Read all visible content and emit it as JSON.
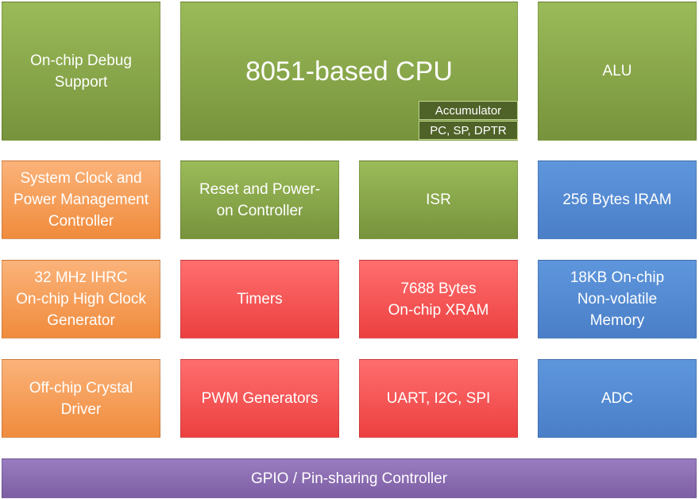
{
  "blocks": [
    {
      "lines": [
        "On-chip Debug",
        "Support"
      ]
    },
    {
      "lines": [
        "8051-based CPU"
      ]
    },
    {
      "lines": [
        "ALU"
      ]
    },
    {
      "lines": [
        "System Clock and",
        "Power Management",
        "Controller"
      ]
    },
    {
      "lines": [
        "Reset and Power-",
        "on Controller"
      ]
    },
    {
      "lines": [
        "ISR"
      ]
    },
    {
      "lines": [
        "256 Bytes IRAM"
      ]
    },
    {
      "lines": [
        "32 MHz IHRC",
        "On-chip High Clock",
        "Generator"
      ]
    },
    {
      "lines": [
        "Timers"
      ]
    },
    {
      "lines": [
        "7688 Bytes",
        "On-chip XRAM"
      ]
    },
    {
      "lines": [
        "18KB On-chip",
        "Non-volatile",
        "Memory"
      ]
    },
    {
      "lines": [
        "Off-chip Crystal",
        "Driver"
      ]
    },
    {
      "lines": [
        "PWM Generators"
      ]
    },
    {
      "lines": [
        "UART, I2C, SPI"
      ]
    },
    {
      "lines": [
        "ADC"
      ]
    },
    {
      "lines": [
        "GPIO / Pin-sharing Controller"
      ]
    }
  ],
  "cpu_registers": [
    "Accumulator",
    "PC, SP, DPTR"
  ]
}
